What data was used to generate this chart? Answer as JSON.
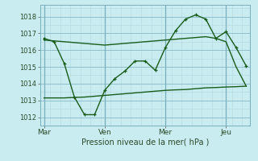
{
  "background_color": "#c8ecf0",
  "grid_color_minor": "#b8dce4",
  "grid_color_major": "#90c0cc",
  "line_color": "#1a5c1a",
  "title": "Pression niveau de la mer( hPa )",
  "xlabels": [
    "Mar",
    "Ven",
    "Mer",
    "Jeu"
  ],
  "xtick_positions": [
    0,
    3,
    6,
    9
  ],
  "ylim": [
    1011.5,
    1018.7
  ],
  "yticks": [
    1012,
    1013,
    1014,
    1015,
    1016,
    1017,
    1018
  ],
  "series1_x": [
    0,
    0.5,
    1,
    1.5,
    2,
    2.5,
    3,
    3.5,
    4,
    4.5,
    5,
    5.5,
    6,
    6.5,
    7,
    7.5,
    8,
    8.5,
    9,
    9.5,
    10
  ],
  "series1_y": [
    1016.7,
    1016.5,
    1015.2,
    1013.2,
    1012.15,
    1012.15,
    1013.6,
    1014.3,
    1014.75,
    1015.35,
    1015.35,
    1014.8,
    1016.15,
    1017.15,
    1017.85,
    1018.1,
    1017.85,
    1016.7,
    1017.1,
    1016.15,
    1015.05
  ],
  "series2_x": [
    0,
    0.5,
    1,
    1.5,
    2,
    2.5,
    3,
    3.5,
    4,
    4.5,
    5,
    5.5,
    6,
    6.5,
    7,
    7.5,
    8,
    8.5,
    9,
    9.5,
    10
  ],
  "series2_y": [
    1016.6,
    1016.55,
    1016.5,
    1016.45,
    1016.4,
    1016.35,
    1016.3,
    1016.35,
    1016.4,
    1016.45,
    1016.5,
    1016.55,
    1016.6,
    1016.65,
    1016.7,
    1016.75,
    1016.8,
    1016.7,
    1016.5,
    1015.0,
    1013.85
  ],
  "series3_x": [
    0,
    0.5,
    1,
    1.5,
    2,
    2.5,
    3,
    3.5,
    4,
    4.5,
    5,
    5.5,
    6,
    6.5,
    7,
    7.5,
    8,
    8.5,
    9,
    9.5,
    10
  ],
  "series3_y": [
    1013.15,
    1013.15,
    1013.15,
    1013.18,
    1013.2,
    1013.25,
    1013.3,
    1013.35,
    1013.4,
    1013.45,
    1013.5,
    1013.55,
    1013.6,
    1013.63,
    1013.65,
    1013.7,
    1013.75,
    1013.77,
    1013.8,
    1013.82,
    1013.85
  ],
  "vline_positions": [
    0,
    3,
    6,
    9
  ],
  "figsize": [
    3.2,
    2.0
  ],
  "dpi": 100
}
